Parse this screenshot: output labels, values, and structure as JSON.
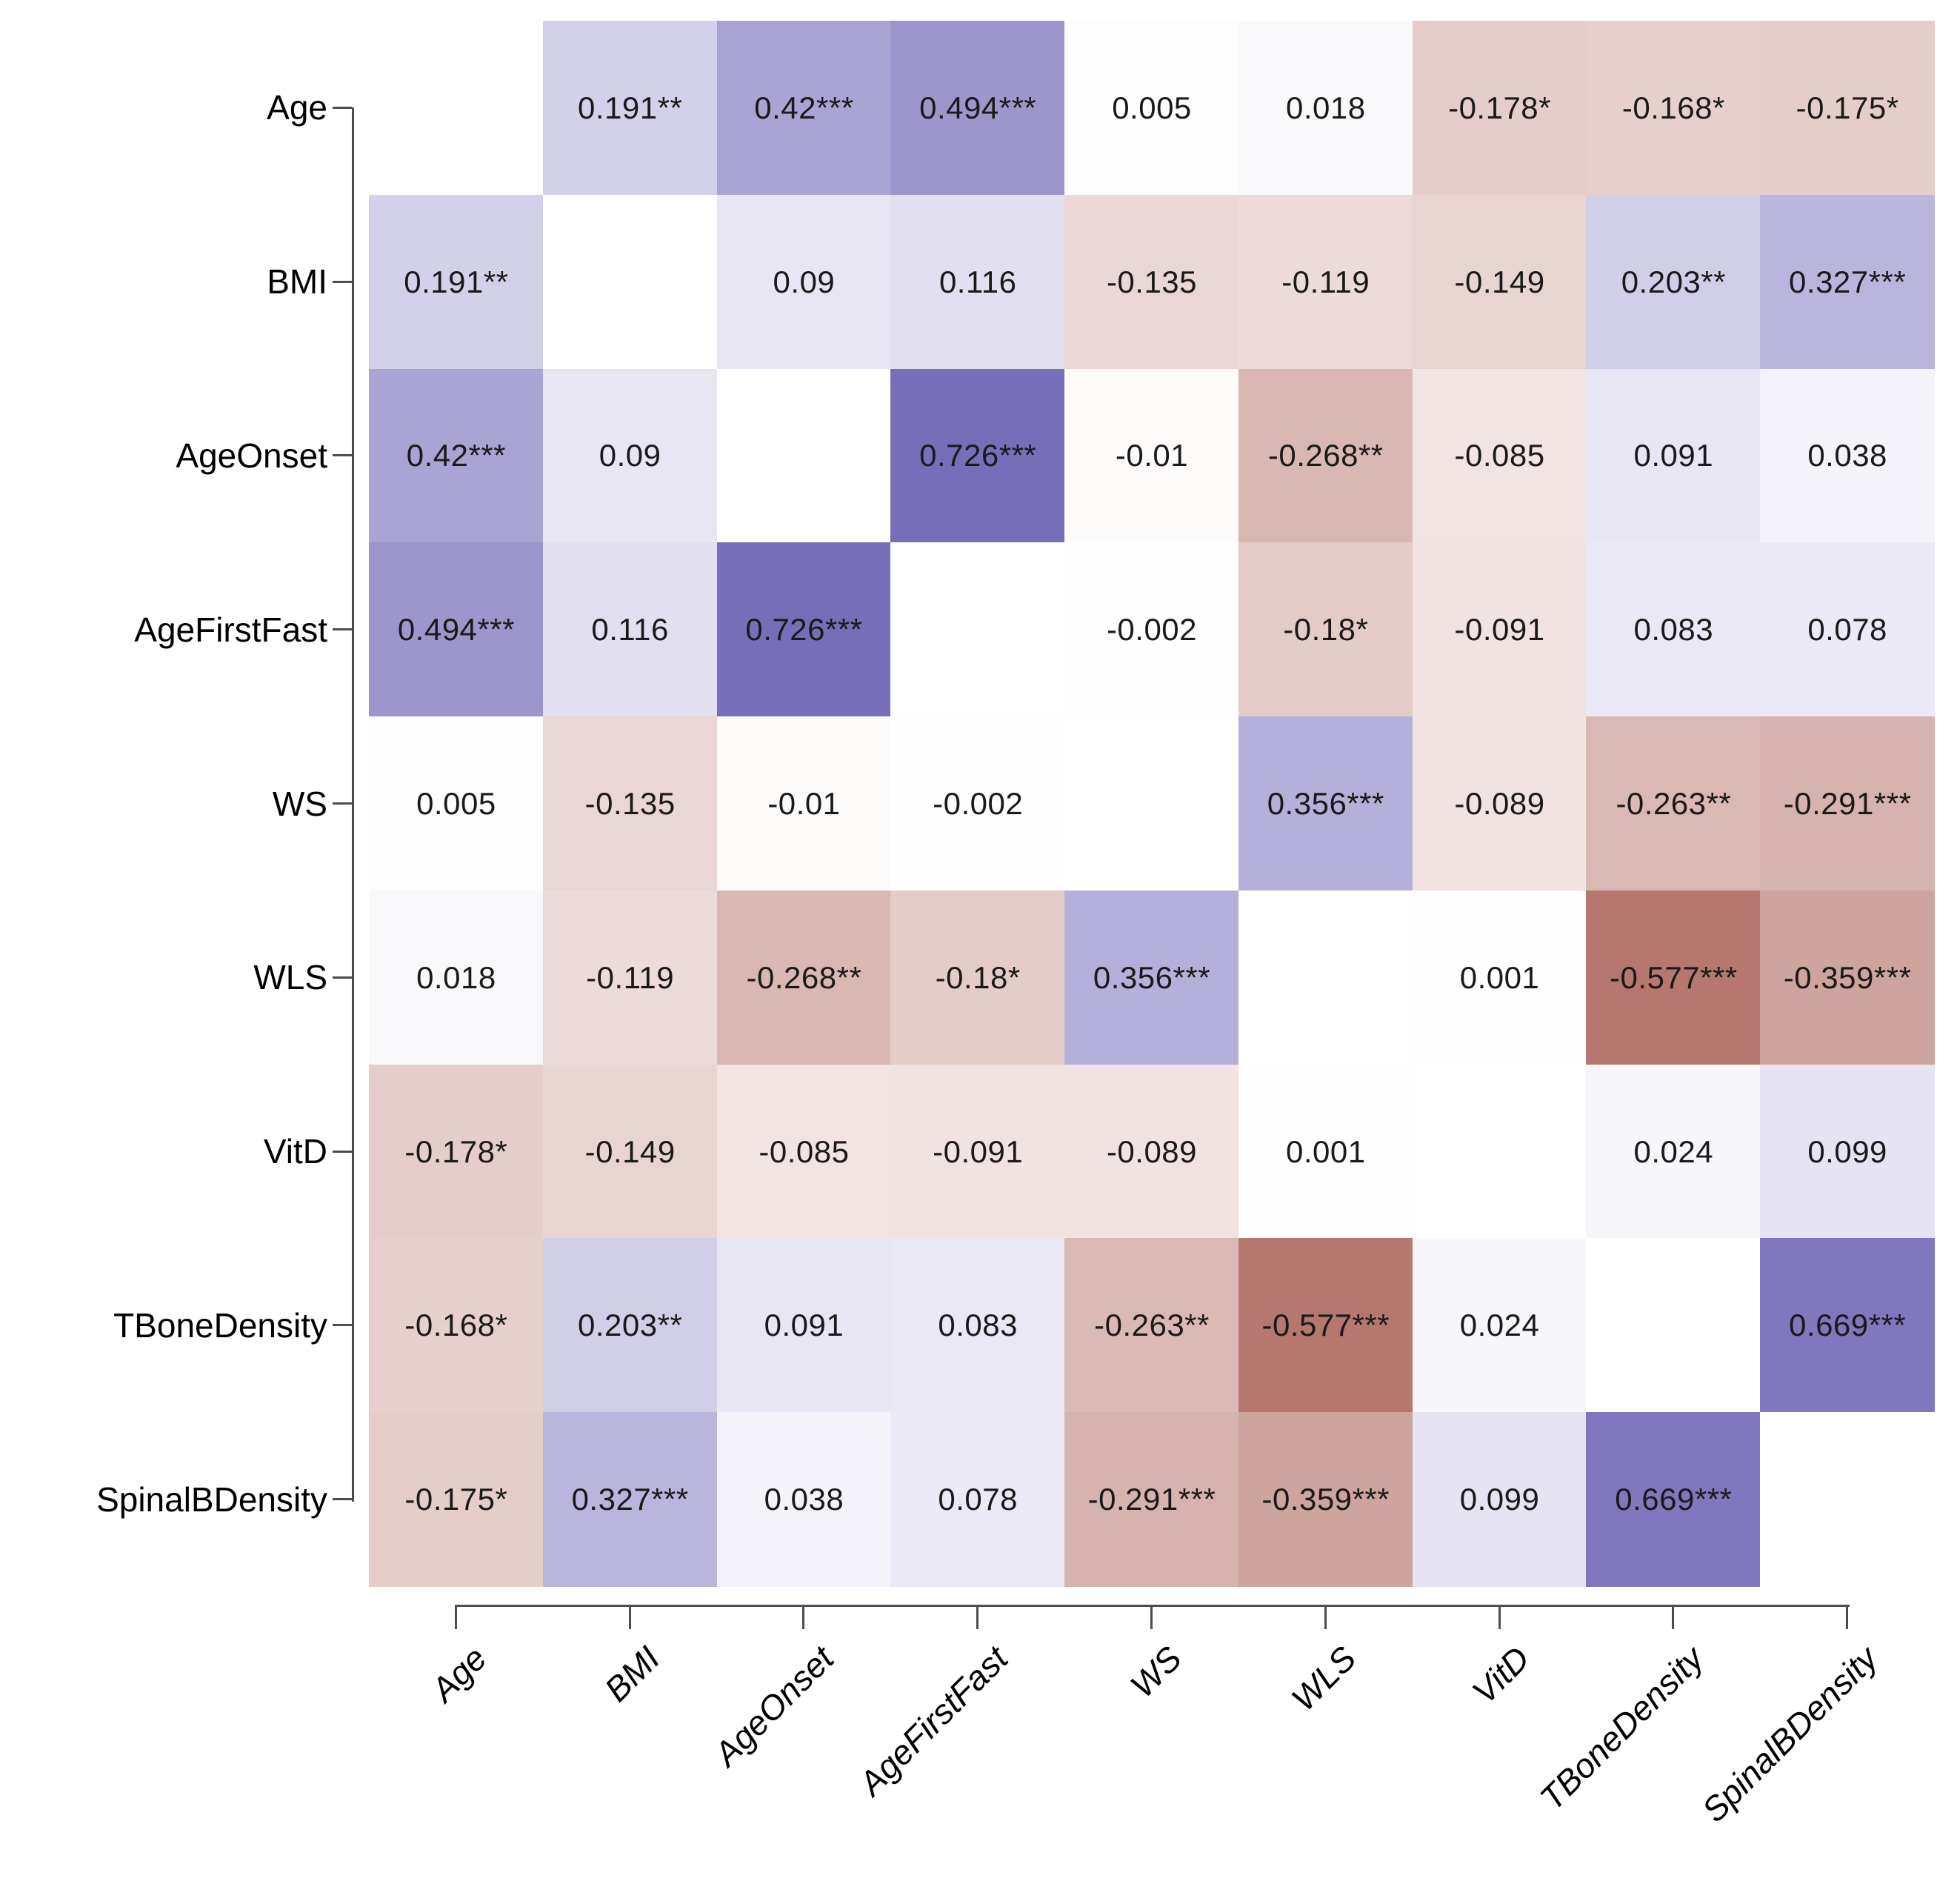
{
  "figure": {
    "title": "",
    "background": "#ffffff"
  },
  "chart_data": {
    "type": "heatmap",
    "subtype": "correlation-matrix",
    "title": "",
    "variables": [
      "Age",
      "BMI",
      "AgeOnset",
      "AgeFirstFast",
      "WS",
      "WLS",
      "VitD",
      "TBoneDensity",
      "SpinalBDensity"
    ],
    "x_tick_labels": [
      "Age",
      "BMI",
      "AgeOnset",
      "AgeFirstFast",
      "WS",
      "WLS",
      "VitD",
      "TBoneDensity",
      "SpinalBDensity"
    ],
    "y_tick_labels": [
      "Age",
      "BMI",
      "AgeOnset",
      "AgeFirstFast",
      "WS",
      "WLS",
      "VitD",
      "TBoneDensity",
      "SpinalBDensity"
    ],
    "cell_labels": [
      [
        null,
        "0.191**",
        "0.42***",
        "0.494***",
        "0.005",
        "0.018",
        "-0.178*",
        "-0.168*",
        "-0.175*"
      ],
      [
        "0.191**",
        null,
        "0.09",
        "0.116",
        "-0.135",
        "-0.119",
        "-0.149",
        "0.203**",
        "0.327***"
      ],
      [
        "0.42***",
        "0.09",
        null,
        "0.726***",
        "-0.01",
        "-0.268**",
        "-0.085",
        "0.091",
        "0.038"
      ],
      [
        "0.494***",
        "0.116",
        "0.726***",
        null,
        "-0.002",
        "-0.18*",
        "-0.091",
        "0.083",
        "0.078"
      ],
      [
        "0.005",
        "-0.135",
        "-0.01",
        "-0.002",
        null,
        "0.356***",
        "-0.089",
        "-0.263**",
        "-0.291***"
      ],
      [
        "0.018",
        "-0.119",
        "-0.268**",
        "-0.18*",
        "0.356***",
        null,
        "0.001",
        "-0.577***",
        "-0.359***"
      ],
      [
        "-0.178*",
        "-0.149",
        "-0.085",
        "-0.091",
        "-0.089",
        "0.001",
        null,
        "0.024",
        "0.099"
      ],
      [
        "-0.168*",
        "0.203**",
        "0.091",
        "0.083",
        "-0.263**",
        "-0.577***",
        "0.024",
        null,
        "0.669***"
      ],
      [
        "-0.175*",
        "0.327***",
        "0.038",
        "0.078",
        "-0.291***",
        "-0.359***",
        "0.099",
        "0.669***",
        null
      ]
    ],
    "values": [
      [
        null,
        0.191,
        0.42,
        0.494,
        0.005,
        0.018,
        -0.178,
        -0.168,
        -0.175
      ],
      [
        0.191,
        null,
        0.09,
        0.116,
        -0.135,
        -0.119,
        -0.149,
        0.203,
        0.327
      ],
      [
        0.42,
        0.09,
        null,
        0.726,
        -0.01,
        -0.268,
        -0.085,
        0.091,
        0.038
      ],
      [
        0.494,
        0.116,
        0.726,
        null,
        -0.002,
        -0.18,
        -0.091,
        0.083,
        0.078
      ],
      [
        0.005,
        -0.135,
        -0.01,
        -0.002,
        null,
        0.356,
        -0.089,
        -0.263,
        -0.291
      ],
      [
        0.018,
        -0.119,
        -0.268,
        -0.18,
        0.356,
        null,
        0.001,
        -0.577,
        -0.359
      ],
      [
        -0.178,
        -0.149,
        -0.085,
        -0.091,
        -0.089,
        0.001,
        null,
        0.024,
        0.099
      ],
      [
        -0.168,
        0.203,
        0.091,
        0.083,
        -0.263,
        -0.577,
        0.024,
        null,
        0.669
      ],
      [
        -0.175,
        0.327,
        0.038,
        0.078,
        -0.291,
        -0.359,
        0.099,
        0.669,
        null
      ]
    ],
    "value_range": [
      -1,
      1
    ],
    "diagonal": "blank",
    "grid_on": false,
    "legend": "none",
    "color_scale": {
      "negative_end": "#8b2617",
      "mid": "#ffffff",
      "positive_end": "#4c40a4",
      "gamma": 0.85
    },
    "axis_color": "#4d4d4d",
    "cell_text_color": "#1a1a1a"
  }
}
